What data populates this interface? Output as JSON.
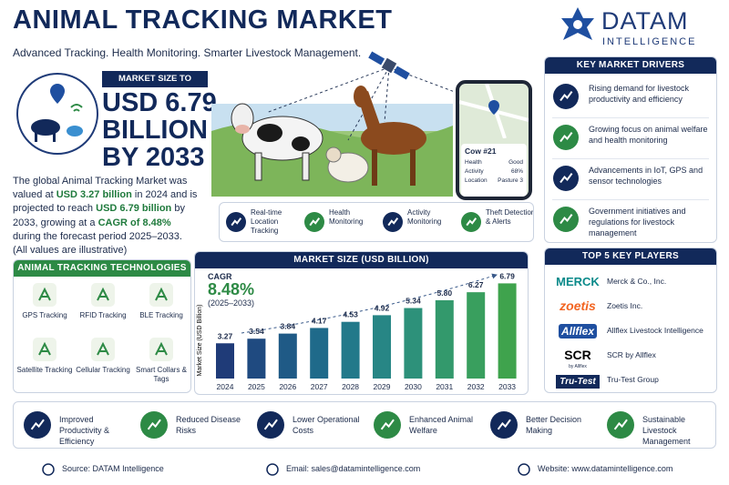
{
  "header": {
    "title": "ANIMAL TRACKING MARKET",
    "subtitle": "Advanced Tracking. Health Monitoring. Smarter Livestock Management."
  },
  "brand": {
    "name": "DATAM",
    "tagline": "INTELLIGENCE"
  },
  "market_size": {
    "label": "MARKET SIZE TO REACH",
    "lines": [
      "USD 6.79",
      "BILLION",
      "BY 2033"
    ]
  },
  "summary": {
    "parts": [
      "The global Animal Tracking Market was valued at ",
      "USD 3.27 billion",
      " in 2024 and is projected to reach ",
      "USD 6.79 billion",
      " by 2033, growing at a ",
      "CAGR of 8.48%",
      " during the forecast period 2025–2033."
    ],
    "note": "(All values are illustrative)"
  },
  "technologies": {
    "title": "ANIMAL TRACKING TECHNOLOGIES",
    "items": [
      "GPS Tracking",
      "RFID Tracking",
      "BLE Tracking",
      "Satellite Tracking",
      "Cellular Tracking",
      "Smart Collars & Tags"
    ]
  },
  "device": {
    "title": "Cow #21",
    "rows": [
      [
        "Health",
        "Good"
      ],
      [
        "Activity",
        "68%"
      ],
      [
        "Location",
        "Pasture 3"
      ]
    ]
  },
  "features": [
    "Real-time Location Tracking",
    "Health Monitoring",
    "Activity Monitoring",
    "Theft Detection & Alerts"
  ],
  "chart_data": {
    "type": "bar",
    "title": "MARKET SIZE (USD BILLION)",
    "cagr_label": "CAGR",
    "cagr_value": "8.48%",
    "cagr_period": "(2025–2033)",
    "y_label": "Market Size (USD Billion)",
    "categories": [
      "2024",
      "2025",
      "2026",
      "2027",
      "2028",
      "2029",
      "2030",
      "2031",
      "2032",
      "2033"
    ],
    "values": [
      3.27,
      3.54,
      3.84,
      4.17,
      4.53,
      4.92,
      5.34,
      5.8,
      6.27,
      6.79
    ],
    "value_labels": [
      "3.27",
      "3.54",
      "3.84",
      "4.17",
      "4.53",
      "4.92",
      "5.34",
      "5.80",
      "6.27",
      "6.79"
    ],
    "colors": [
      "#1f3b78",
      "#1f4a80",
      "#1f5a86",
      "#1f6a8a",
      "#22798a",
      "#278685",
      "#2d917a",
      "#33996c",
      "#399f5e",
      "#3fa34d"
    ],
    "ylim": [
      1.2,
      7.4
    ]
  },
  "drivers": {
    "title": "KEY MARKET DRIVERS",
    "items": [
      "Rising demand for livestock productivity and efficiency",
      "Growing focus on animal welfare and health monitoring",
      "Advancements in IoT, GPS and sensor technologies",
      "Government initiatives and regulations for livestock management"
    ]
  },
  "players": {
    "title": "TOP 5 KEY PLAYERS",
    "items": [
      {
        "logo": "MERCK",
        "name": "Merck & Co., Inc."
      },
      {
        "logo": "zoetis",
        "name": "Zoetis Inc."
      },
      {
        "logo": "Allflex",
        "name": "Allflex Livestock Intelligence"
      },
      {
        "logo": "SCR",
        "sub": "by Allflex",
        "name": "SCR by Allflex"
      },
      {
        "logo": "Tru-Test",
        "name": "Tru-Test Group"
      }
    ]
  },
  "benefits": [
    "Improved Productivity & Efficiency",
    "Reduced Disease Risks",
    "Lower Operational Costs",
    "Enhanced Animal Welfare",
    "Better Decision Making",
    "Sustainable Livestock Management"
  ],
  "footer": [
    "Source: DATAM Intelligence",
    "Email: sales@datamintelligence.com",
    "Website: www.datamintelligence.com"
  ]
}
